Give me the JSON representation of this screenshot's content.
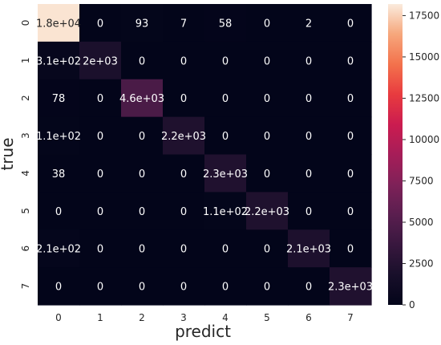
{
  "chart_data": {
    "type": "heatmap",
    "xlabel": "predict",
    "ylabel": "true",
    "x_categories": [
      "0",
      "1",
      "2",
      "3",
      "4",
      "5",
      "6",
      "7"
    ],
    "y_categories": [
      "0",
      "1",
      "2",
      "3",
      "4",
      "5",
      "6",
      "7"
    ],
    "values": [
      [
        18000,
        0,
        93,
        7,
        58,
        0,
        2,
        0
      ],
      [
        310,
        2000,
        0,
        0,
        0,
        0,
        0,
        0
      ],
      [
        78,
        0,
        4600,
        0,
        0,
        0,
        0,
        0
      ],
      [
        110,
        0,
        0,
        2200,
        0,
        0,
        0,
        0
      ],
      [
        38,
        0,
        0,
        0,
        2300,
        0,
        0,
        0
      ],
      [
        0,
        0,
        0,
        0,
        110,
        2200,
        0,
        0
      ],
      [
        210,
        0,
        0,
        0,
        0,
        0,
        2100,
        0
      ],
      [
        0,
        0,
        0,
        0,
        0,
        0,
        0,
        2300
      ]
    ],
    "annotations": [
      [
        "1.8e+04",
        "0",
        "93",
        "7",
        "58",
        "0",
        "2",
        "0"
      ],
      [
        "3.1e+02",
        "2e+03",
        "0",
        "0",
        "0",
        "0",
        "0",
        "0"
      ],
      [
        "78",
        "0",
        "4.6e+03",
        "0",
        "0",
        "0",
        "0",
        "0"
      ],
      [
        "1.1e+02",
        "0",
        "0",
        "2.2e+03",
        "0",
        "0",
        "0",
        "0"
      ],
      [
        "38",
        "0",
        "0",
        "0",
        "2.3e+03",
        "0",
        "0",
        "0"
      ],
      [
        "0",
        "0",
        "0",
        "0",
        "1.1e+02",
        "2.2e+03",
        "0",
        "0"
      ],
      [
        "2.1e+02",
        "0",
        "0",
        "0",
        "0",
        "0",
        "2.1e+03",
        "0"
      ],
      [
        "0",
        "0",
        "0",
        "0",
        "0",
        "0",
        "0",
        "2.3e+03"
      ]
    ],
    "colorbar": {
      "range": [
        0,
        18200
      ],
      "ticks": [
        0,
        2500,
        5000,
        7500,
        10000,
        12500,
        15000,
        17500
      ],
      "tick_labels": [
        "0",
        "2500",
        "5000",
        "7500",
        "10000",
        "12500",
        "15000",
        "17500"
      ],
      "colormap": "rocket"
    }
  }
}
